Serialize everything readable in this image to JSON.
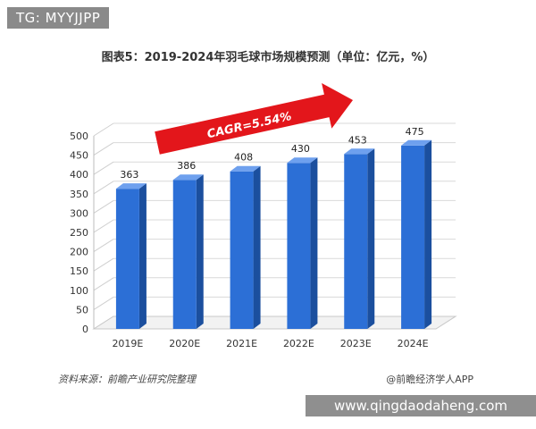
{
  "overlay": {
    "tg_label": "TG: MYYJJPP",
    "site_banner": "www.qingdaodaheng.com"
  },
  "footer": {
    "source": "资料来源：前瞻产业研究院整理",
    "brand": "@前瞻经济学人APP"
  },
  "colors": {
    "bar_front": "#2c6fd6",
    "bar_side": "#1b4f9e",
    "bar_top": "#6ea0ee",
    "arrow": "#e3161b"
  },
  "chart_data": {
    "type": "bar",
    "title": "图表5：2019-2024年羽毛球市场规模预测（单位：亿元，%）",
    "categories": [
      "2019E",
      "2020E",
      "2021E",
      "2022E",
      "2023E",
      "2024E"
    ],
    "values": [
      363,
      386,
      408,
      430,
      453,
      475
    ],
    "data_labels": [
      "363",
      "386",
      "408",
      "430",
      "453",
      "475"
    ],
    "ylim": [
      0,
      500
    ],
    "yticks": [
      "0",
      "50",
      "100",
      "150",
      "200",
      "250",
      "300",
      "350",
      "400",
      "450",
      "500"
    ],
    "annotation": "CAGR=5.54%",
    "grid": true,
    "legend": "none"
  }
}
